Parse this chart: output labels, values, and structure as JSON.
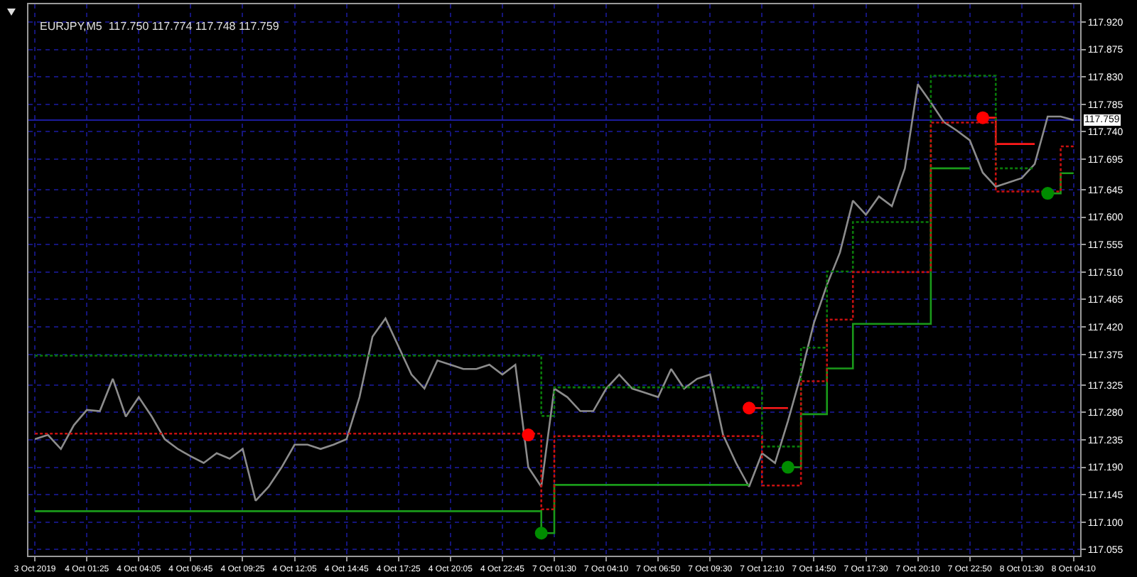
{
  "chart_data": {
    "type": "line",
    "title": "EURJPY,M5  117.750 117.774 117.748 117.759",
    "categories": [
      "3 Oct 2019",
      null,
      null,
      null,
      "4 Oct 01:25",
      null,
      null,
      null,
      "4 Oct 04:05",
      null,
      null,
      null,
      "4 Oct 06:45",
      null,
      null,
      null,
      "4 Oct 09:25",
      null,
      null,
      null,
      "4 Oct 12:05",
      null,
      null,
      null,
      "4 Oct 14:45",
      null,
      null,
      null,
      "4 Oct 17:25",
      null,
      null,
      null,
      "4 Oct 20:05",
      null,
      null,
      null,
      "4 Oct 22:45",
      null,
      null,
      null,
      "7 Oct 01:30",
      null,
      null,
      null,
      "7 Oct 04:10",
      null,
      null,
      null,
      "7 Oct 06:50",
      null,
      null,
      null,
      "7 Oct 09:30",
      null,
      null,
      null,
      "7 Oct 12:10",
      null,
      null,
      null,
      "7 Oct 14:50",
      null,
      null,
      null,
      "7 Oct 17:30",
      null,
      null,
      null,
      "7 Oct 20:10",
      null,
      null,
      null,
      "7 Oct 22:50",
      null,
      null,
      null,
      "8 Oct 01:30",
      null,
      null,
      null,
      "8 Oct 04:10"
    ],
    "series": [
      {
        "type": "line",
        "color": "#8c8c8c",
        "line_style": "solid",
        "values": [
          117.236,
          117.243,
          117.22,
          117.259,
          117.284,
          117.282,
          117.335,
          117.273,
          117.305,
          117.273,
          117.236,
          117.22,
          117.208,
          117.197,
          117.213,
          117.204,
          117.22,
          117.135,
          117.158,
          117.19,
          117.227,
          117.227,
          117.22,
          117.227,
          117.236,
          117.305,
          117.404,
          117.434,
          117.388,
          117.342,
          117.319,
          117.365,
          117.358,
          117.351,
          117.351,
          117.358,
          117.342,
          117.358,
          117.19,
          117.158,
          117.319,
          117.305,
          117.282,
          117.282,
          117.319,
          117.342,
          117.319,
          117.312,
          117.305,
          117.351,
          117.319,
          117.335,
          117.342,
          117.243,
          117.197,
          117.158,
          117.213,
          117.197,
          117.266,
          117.342,
          117.427,
          117.489,
          117.542,
          117.627,
          117.604,
          117.634,
          117.618,
          117.68,
          117.818,
          117.788,
          117.756,
          117.742,
          117.726,
          117.673,
          117.65,
          117.657,
          117.664,
          117.687,
          117.765,
          117.765,
          117.759
        ]
      },
      {
        "type": "step",
        "color": "#1a9a1a",
        "line_style": "solid",
        "values": [
          117.118,
          117.118,
          117.118,
          117.118,
          117.118,
          117.118,
          117.118,
          117.118,
          117.118,
          117.118,
          117.118,
          117.118,
          117.118,
          117.118,
          117.118,
          117.118,
          117.118,
          117.118,
          117.118,
          117.118,
          117.118,
          117.118,
          117.118,
          117.118,
          117.118,
          117.118,
          117.118,
          117.118,
          117.118,
          117.118,
          117.118,
          117.118,
          117.118,
          117.118,
          117.118,
          117.118,
          117.118,
          117.118,
          117.118,
          117.082,
          117.161,
          117.161,
          117.161,
          117.161,
          117.161,
          117.161,
          117.161,
          117.161,
          117.161,
          117.161,
          117.161,
          117.161,
          117.161,
          117.161,
          117.161,
          117.161,
          null,
          null,
          117.19,
          117.277,
          117.277,
          117.352,
          117.352,
          117.425,
          117.425,
          117.425,
          117.425,
          117.425,
          117.425,
          117.68,
          117.68,
          117.68,
          117.68,
          null,
          null,
          null,
          null,
          null,
          117.639,
          117.672,
          117.672
        ]
      },
      {
        "type": "step",
        "color": "#ff1a1a",
        "line_style": "solid",
        "values": [
          null,
          null,
          null,
          null,
          null,
          null,
          null,
          null,
          null,
          null,
          null,
          null,
          null,
          null,
          null,
          null,
          null,
          null,
          null,
          null,
          null,
          null,
          null,
          null,
          null,
          null,
          null,
          null,
          null,
          null,
          null,
          null,
          null,
          null,
          null,
          null,
          null,
          null,
          null,
          null,
          null,
          null,
          null,
          null,
          null,
          null,
          null,
          null,
          null,
          null,
          null,
          null,
          null,
          null,
          null,
          117.287,
          117.287,
          117.287,
          117.287,
          null,
          null,
          null,
          null,
          null,
          null,
          null,
          null,
          null,
          null,
          null,
          null,
          null,
          null,
          117.763,
          117.72,
          117.72,
          117.72,
          117.72,
          null,
          null,
          null
        ]
      },
      {
        "type": "step",
        "color": "#0a7a0a",
        "line_style": "dotted",
        "values": [
          117.373,
          117.373,
          117.373,
          117.373,
          117.373,
          117.373,
          117.373,
          117.373,
          117.373,
          117.373,
          117.373,
          117.373,
          117.373,
          117.373,
          117.373,
          117.373,
          117.373,
          117.373,
          117.373,
          117.373,
          117.373,
          117.373,
          117.373,
          117.373,
          117.373,
          117.373,
          117.373,
          117.373,
          117.373,
          117.373,
          117.373,
          117.373,
          117.373,
          117.373,
          117.373,
          117.373,
          117.373,
          117.373,
          117.373,
          117.274,
          117.321,
          117.321,
          117.321,
          117.321,
          117.321,
          117.321,
          117.321,
          117.321,
          117.321,
          117.321,
          117.321,
          117.321,
          117.321,
          117.321,
          117.321,
          117.321,
          117.224,
          117.224,
          117.224,
          117.386,
          117.386,
          117.511,
          117.511,
          117.592,
          117.592,
          117.592,
          117.592,
          117.592,
          117.592,
          117.832,
          117.832,
          117.832,
          117.832,
          117.832,
          117.68,
          117.68,
          117.68,
          117.68,
          null,
          null,
          null
        ]
      },
      {
        "type": "step",
        "color": "#c81010",
        "line_style": "dotted",
        "values": [
          117.245,
          117.245,
          117.245,
          117.245,
          117.245,
          117.245,
          117.245,
          117.245,
          117.245,
          117.245,
          117.245,
          117.245,
          117.245,
          117.245,
          117.245,
          117.245,
          117.245,
          117.245,
          117.245,
          117.245,
          117.245,
          117.245,
          117.245,
          117.245,
          117.245,
          117.245,
          117.245,
          117.245,
          117.245,
          117.245,
          117.245,
          117.245,
          117.245,
          117.245,
          117.245,
          117.245,
          117.245,
          117.245,
          117.245,
          117.121,
          117.241,
          117.241,
          117.241,
          117.241,
          117.241,
          117.241,
          117.241,
          117.241,
          117.241,
          117.241,
          117.241,
          117.241,
          117.241,
          117.241,
          117.241,
          117.241,
          117.16,
          117.16,
          117.16,
          117.331,
          117.331,
          117.432,
          117.432,
          117.51,
          117.51,
          117.51,
          117.51,
          117.51,
          117.51,
          117.755,
          117.755,
          117.755,
          117.755,
          117.755,
          117.642,
          117.642,
          117.642,
          117.642,
          117.642,
          117.716,
          117.716
        ]
      },
      {
        "type": "scatter",
        "color": "#ff0000",
        "marker": "circle",
        "values": [
          null,
          null,
          null,
          null,
          null,
          null,
          null,
          null,
          null,
          null,
          null,
          null,
          null,
          null,
          null,
          null,
          null,
          null,
          null,
          null,
          null,
          null,
          null,
          null,
          null,
          null,
          null,
          null,
          null,
          null,
          null,
          null,
          null,
          null,
          null,
          null,
          null,
          null,
          117.243,
          null,
          null,
          null,
          null,
          null,
          null,
          null,
          null,
          null,
          null,
          null,
          null,
          null,
          null,
          null,
          null,
          117.287,
          null,
          null,
          null,
          null,
          null,
          null,
          null,
          null,
          null,
          null,
          null,
          null,
          null,
          null,
          null,
          null,
          null,
          117.763,
          null,
          null,
          null,
          null,
          null,
          null,
          null
        ]
      },
      {
        "type": "scatter",
        "color": "#008c00",
        "marker": "circle",
        "values": [
          null,
          null,
          null,
          null,
          null,
          null,
          null,
          null,
          null,
          null,
          null,
          null,
          null,
          null,
          null,
          null,
          null,
          null,
          null,
          null,
          null,
          null,
          null,
          null,
          null,
          null,
          null,
          null,
          null,
          null,
          null,
          null,
          null,
          null,
          null,
          null,
          null,
          null,
          null,
          117.082,
          null,
          null,
          null,
          null,
          null,
          null,
          null,
          null,
          null,
          null,
          null,
          null,
          null,
          null,
          null,
          null,
          null,
          null,
          117.19,
          null,
          null,
          null,
          null,
          null,
          null,
          null,
          null,
          null,
          null,
          null,
          null,
          null,
          null,
          null,
          null,
          null,
          null,
          null,
          117.639,
          null,
          null
        ]
      }
    ],
    "ylim": [
      117.045,
      117.949
    ],
    "yticks": [
      117.055,
      {
        "value": 117.1,
        "label": "117.100"
      },
      117.145,
      {
        "value": 117.19,
        "label": "117.190"
      },
      117.235,
      {
        "value": 117.28,
        "label": "117.280"
      },
      117.325,
      117.375,
      {
        "value": 117.42,
        "label": "117.420"
      },
      117.465,
      {
        "value": 117.51,
        "label": "117.510"
      },
      117.555,
      {
        "value": 117.6,
        "label": "117.600"
      },
      117.645,
      117.695,
      {
        "value": 117.74,
        "label": "117.740"
      },
      117.785,
      {
        "value": 117.83,
        "label": "117.830"
      },
      117.875,
      {
        "value": 117.92,
        "label": "117.920"
      }
    ],
    "ref_lines": [
      {
        "axis": "y",
        "value": 117.759,
        "label": "117.759",
        "color": "#1c1c9c",
        "line_style": "solid"
      }
    ],
    "grid": true,
    "legend": false
  }
}
